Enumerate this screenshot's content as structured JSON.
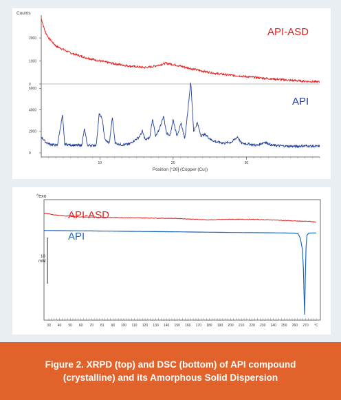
{
  "caption": {
    "line1": "Figure 2. XRPD (top) and DSC (bottom) of API compound",
    "line2": "(crystalline) and its Amorphous Solid Dispersion"
  },
  "colors": {
    "asd": "#e02020",
    "api": "#1f3f9c",
    "dsc_api": "#1e66b8",
    "caption_bg": "#e2622b"
  },
  "chart_data": [
    {
      "type": "line",
      "panel": "XRPD",
      "ylabel": "Counts",
      "xlabel": "Position [°2θ] (Copper (Cu))",
      "x_ticks": [
        "10",
        "20",
        "30"
      ],
      "xlim": [
        2,
        40
      ],
      "grid": false,
      "subplots": [
        {
          "y_ticks": [
            "0",
            "1000",
            "2000"
          ],
          "ylim": [
            0,
            2900
          ],
          "series": [
            {
              "name": "API-ASD",
              "points": [
                [
                  2,
                  2850
                ],
                [
                  2.5,
                  2300
                ],
                [
                  3,
                  2000
                ],
                [
                  4,
                  1650
                ],
                [
                  6,
                  1350
                ],
                [
                  8,
                  1150
                ],
                [
                  10,
                  1000
                ],
                [
                  12,
                  880
                ],
                [
                  14,
                  780
                ],
                [
                  16,
                  720
                ],
                [
                  17,
                  740
                ],
                [
                  18,
                  820
                ],
                [
                  19,
                  900
                ],
                [
                  20,
                  850
                ],
                [
                  22,
                  700
                ],
                [
                  24,
                  560
                ],
                [
                  26,
                  450
                ],
                [
                  28,
                  380
                ],
                [
                  30,
                  320
                ],
                [
                  32,
                  260
                ],
                [
                  34,
                  210
                ],
                [
                  36,
                  160
                ],
                [
                  38,
                  120
                ],
                [
                  40,
                  90
                ]
              ]
            }
          ]
        },
        {
          "y_ticks": [
            "0",
            "2000",
            "4000",
            "6000"
          ],
          "ylim": [
            0,
            6400
          ],
          "series": [
            {
              "name": "API",
              "points": [
                [
                  2,
                  1500
                ],
                [
                  2.6,
                  1000
                ],
                [
                  3.2,
                  800
                ],
                [
                  4.2,
                  700
                ],
                [
                  4.9,
                  3500
                ],
                [
                  5.2,
                  800
                ],
                [
                  6.5,
                  700
                ],
                [
                  7.5,
                  700
                ],
                [
                  7.9,
                  2200
                ],
                [
                  8.3,
                  700
                ],
                [
                  9.5,
                  700
                ],
                [
                  9.9,
                  3600
                ],
                [
                  10.3,
                  3200
                ],
                [
                  10.7,
                  1200
                ],
                [
                  11.3,
                  900
                ],
                [
                  11.7,
                  3300
                ],
                [
                  12.1,
                  900
                ],
                [
                  13,
                  750
                ],
                [
                  14,
                  800
                ],
                [
                  14.8,
                  1200
                ],
                [
                  15.4,
                  1500
                ],
                [
                  15.8,
                  2000
                ],
                [
                  16.2,
                  1200
                ],
                [
                  16.8,
                  1400
                ],
                [
                  17.2,
                  3200
                ],
                [
                  17.6,
                  1500
                ],
                [
                  18,
                  2000
                ],
                [
                  18.7,
                  3400
                ],
                [
                  19.1,
                  1800
                ],
                [
                  19.6,
                  1700
                ],
                [
                  20,
                  3100
                ],
                [
                  20.5,
                  1600
                ],
                [
                  21.1,
                  2700
                ],
                [
                  21.6,
                  1300
                ],
                [
                  22.4,
                  6600
                ],
                [
                  22.8,
                  2000
                ],
                [
                  23.3,
                  2800
                ],
                [
                  23.8,
                  1600
                ],
                [
                  24.4,
                  1700
                ],
                [
                  25.2,
                  1200
                ],
                [
                  26,
                  1000
                ],
                [
                  27,
                  900
                ],
                [
                  28,
                  1000
                ],
                [
                  28.8,
                  1500
                ],
                [
                  29.3,
                  900
                ],
                [
                  30.5,
                  800
                ],
                [
                  31.5,
                  700
                ],
                [
                  32.5,
                  1000
                ],
                [
                  33.5,
                  700
                ],
                [
                  35,
                  650
                ],
                [
                  36.5,
                  600
                ],
                [
                  38,
                  650
                ],
                [
                  40,
                  600
                ]
              ]
            }
          ]
        }
      ]
    },
    {
      "type": "line",
      "panel": "DSC",
      "ylabel": "^exo",
      "scale_bar": {
        "label": "10 mW",
        "value": 10
      },
      "x_ticks": [
        "30",
        "40",
        "50",
        "60",
        "70",
        "81",
        "90",
        "100",
        "110",
        "120",
        "130",
        "140",
        "150",
        "160",
        "170",
        "180",
        "190",
        "200",
        "210",
        "220",
        "230",
        "240",
        "250",
        "260",
        "270",
        "°C"
      ],
      "xlim": [
        25,
        285
      ],
      "grid": false,
      "series": [
        {
          "name": "API-ASD",
          "points": [
            [
              25,
              3.5
            ],
            [
              40,
              2.0
            ],
            [
              60,
              1.2
            ],
            [
              100,
              0.8
            ],
            [
              150,
              0.3
            ],
            [
              180,
              -0.6
            ],
            [
              200,
              -0.2
            ],
            [
              220,
              -0.3
            ],
            [
              240,
              -0.6
            ],
            [
              260,
              -1.2
            ],
            [
              275,
              -1.5
            ],
            [
              281,
              -2.0
            ]
          ]
        },
        {
          "name": "API",
          "points": [
            [
              25,
              -7.0
            ],
            [
              60,
              -7.2
            ],
            [
              100,
              -7.5
            ],
            [
              150,
              -7.8
            ],
            [
              200,
              -8.2
            ],
            [
              240,
              -8.4
            ],
            [
              260,
              -8.6
            ],
            [
              264,
              -9.0
            ],
            [
              266,
              -11.5
            ],
            [
              268,
              -18.0
            ],
            [
              269,
              -30.0
            ],
            [
              269.6,
              -45.0
            ],
            [
              270.2,
              -58.0
            ],
            [
              270.8,
              -38.0
            ],
            [
              271.5,
              -18.0
            ],
            [
              272.3,
              -10.0
            ],
            [
              274,
              -8.6
            ],
            [
              281,
              -8.5
            ]
          ]
        }
      ]
    }
  ]
}
